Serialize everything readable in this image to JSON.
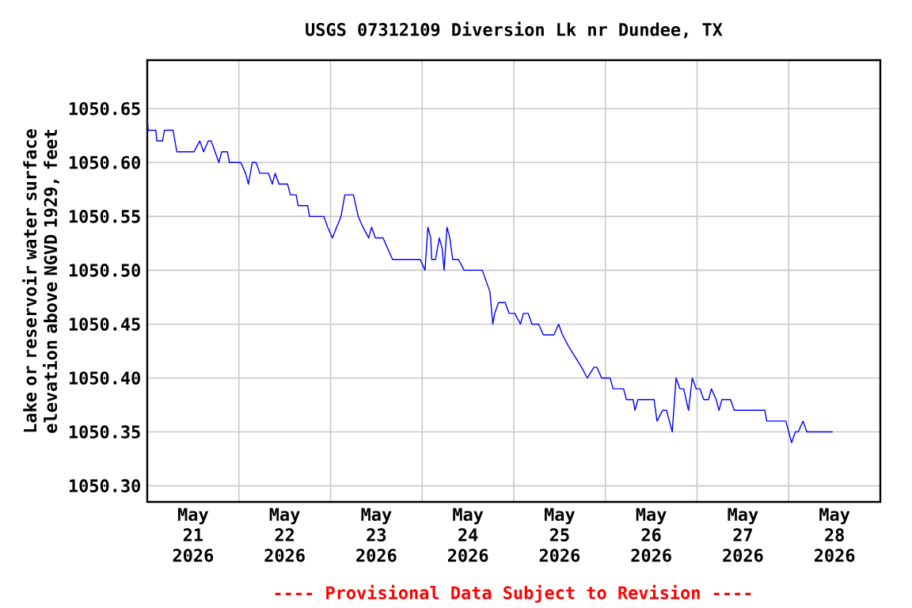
{
  "chart_data": {
    "type": "line",
    "title": "USGS 07312109 Diversion Lk nr Dundee, TX",
    "ylabel": "Lake or reservoir water surface elevation above NGVD 1929, feet",
    "x": [
      "2026-05-21T00:00",
      "2026-05-21T00:15",
      "2026-05-21T02:15",
      "2026-05-21T02:30",
      "2026-05-21T04:00",
      "2026-05-21T04:30",
      "2026-05-21T06:45",
      "2026-05-21T07:45",
      "2026-05-21T12:15",
      "2026-05-21T13:45",
      "2026-05-21T14:45",
      "2026-05-21T16:00",
      "2026-05-21T16:45",
      "2026-05-21T18:45",
      "2026-05-21T19:30",
      "2026-05-21T21:00",
      "2026-05-21T21:30",
      "2026-05-22T00:30",
      "2026-05-22T01:45",
      "2026-05-22T02:30",
      "2026-05-22T03:30",
      "2026-05-22T04:30",
      "2026-05-22T05:30",
      "2026-05-22T07:45",
      "2026-05-22T08:45",
      "2026-05-22T09:30",
      "2026-05-22T10:30",
      "2026-05-22T12:45",
      "2026-05-22T13:30",
      "2026-05-22T15:00",
      "2026-05-22T15:30",
      "2026-05-22T18:00",
      "2026-05-22T18:30",
      "2026-05-22T22:15",
      "2026-05-22T23:15",
      "2026-05-23T00:30",
      "2026-05-23T02:45",
      "2026-05-23T03:45",
      "2026-05-23T06:00",
      "2026-05-23T07:15",
      "2026-05-23T08:30",
      "2026-05-23T10:00",
      "2026-05-23T10:45",
      "2026-05-23T11:45",
      "2026-05-23T13:45",
      "2026-05-23T15:00",
      "2026-05-23T16:15",
      "2026-05-23T23:30",
      "2026-05-24T00:45",
      "2026-05-24T01:30",
      "2026-05-24T02:15",
      "2026-05-24T02:30",
      "2026-05-24T03:30",
      "2026-05-24T04:30",
      "2026-05-24T05:15",
      "2026-05-24T05:45",
      "2026-05-24T06:30",
      "2026-05-24T07:15",
      "2026-05-24T08:00",
      "2026-05-24T09:30",
      "2026-05-24T11:00",
      "2026-05-24T15:45",
      "2026-05-24T16:45",
      "2026-05-24T17:45",
      "2026-05-24T18:30",
      "2026-05-24T19:00",
      "2026-05-24T20:00",
      "2026-05-24T21:00",
      "2026-05-24T21:45",
      "2026-05-24T22:45",
      "2026-05-25T00:15",
      "2026-05-25T01:45",
      "2026-05-25T02:30",
      "2026-05-25T03:45",
      "2026-05-25T04:45",
      "2026-05-25T06:30",
      "2026-05-25T07:45",
      "2026-05-25T10:30",
      "2026-05-25T11:45",
      "2026-05-25T12:45",
      "2026-05-25T14:15",
      "2026-05-25T16:00",
      "2026-05-25T17:45",
      "2026-05-25T19:15",
      "2026-05-25T21:00",
      "2026-05-25T21:45",
      "2026-05-25T23:00",
      "2026-05-26T01:15",
      "2026-05-26T02:00",
      "2026-05-26T04:45",
      "2026-05-26T05:30",
      "2026-05-26T07:15",
      "2026-05-26T07:45",
      "2026-05-26T08:30",
      "2026-05-26T12:45",
      "2026-05-26T13:30",
      "2026-05-26T15:00",
      "2026-05-26T16:00",
      "2026-05-26T17:30",
      "2026-05-26T18:30",
      "2026-05-26T19:30",
      "2026-05-26T20:30",
      "2026-05-26T21:45",
      "2026-05-26T22:45",
      "2026-05-26T23:45",
      "2026-05-27T00:45",
      "2026-05-27T01:45",
      "2026-05-27T03:00",
      "2026-05-27T03:45",
      "2026-05-27T05:00",
      "2026-05-27T05:45",
      "2026-05-27T06:30",
      "2026-05-27T08:45",
      "2026-05-27T09:45",
      "2026-05-27T17:45",
      "2026-05-27T18:15",
      "2026-05-27T23:15",
      "2026-05-28T00:45",
      "2026-05-28T01:45",
      "2026-05-28T02:30",
      "2026-05-28T03:45",
      "2026-05-28T04:45",
      "2026-05-28T11:30"
    ],
    "values": [
      1050.64,
      1050.63,
      1050.63,
      1050.62,
      1050.62,
      1050.63,
      1050.63,
      1050.61,
      1050.61,
      1050.62,
      1050.61,
      1050.62,
      1050.62,
      1050.6,
      1050.61,
      1050.61,
      1050.6,
      1050.6,
      1050.59,
      1050.58,
      1050.6,
      1050.6,
      1050.59,
      1050.59,
      1050.58,
      1050.59,
      1050.58,
      1050.58,
      1050.57,
      1050.57,
      1050.56,
      1050.56,
      1050.55,
      1050.55,
      1050.54,
      1050.53,
      1050.55,
      1050.57,
      1050.57,
      1050.55,
      1050.54,
      1050.53,
      1050.54,
      1050.53,
      1050.53,
      1050.52,
      1050.51,
      1050.51,
      1050.5,
      1050.54,
      1050.53,
      1050.51,
      1050.51,
      1050.53,
      1050.52,
      1050.5,
      1050.54,
      1050.53,
      1050.51,
      1050.51,
      1050.5,
      1050.5,
      1050.49,
      1050.48,
      1050.45,
      1050.46,
      1050.47,
      1050.47,
      1050.47,
      1050.46,
      1050.46,
      1050.45,
      1050.46,
      1050.46,
      1050.45,
      1050.45,
      1050.44,
      1050.44,
      1050.45,
      1050.44,
      1050.43,
      1050.42,
      1050.41,
      1050.4,
      1050.41,
      1050.41,
      1050.4,
      1050.4,
      1050.39,
      1050.39,
      1050.38,
      1050.38,
      1050.37,
      1050.38,
      1050.38,
      1050.36,
      1050.37,
      1050.37,
      1050.35,
      1050.4,
      1050.39,
      1050.39,
      1050.37,
      1050.4,
      1050.39,
      1050.39,
      1050.38,
      1050.38,
      1050.39,
      1050.38,
      1050.37,
      1050.38,
      1050.38,
      1050.37,
      1050.37,
      1050.36,
      1050.36,
      1050.34,
      1050.35,
      1050.35,
      1050.36,
      1050.35,
      1050.35
    ],
    "color": "#0000ff",
    "xlim": [
      "2026-05-21T00:00",
      "2026-05-29T00:00"
    ],
    "xticks": [
      {
        "value": "2026-05-21T12:00",
        "label": "May 21 2026"
      },
      {
        "value": "2026-05-22T12:00",
        "label": "May 22 2026"
      },
      {
        "value": "2026-05-23T12:00",
        "label": "May 23 2026"
      },
      {
        "value": "2026-05-24T12:00",
        "label": "May 24 2026"
      },
      {
        "value": "2026-05-25T12:00",
        "label": "May 25 2026"
      },
      {
        "value": "2026-05-26T12:00",
        "label": "May 26 2026"
      },
      {
        "value": "2026-05-27T12:00",
        "label": "May 27 2026"
      },
      {
        "value": "2026-05-28T12:00",
        "label": "May 28 2026"
      },
      {
        "value": "2026-05-22T00:00",
        "label": null
      },
      {
        "value": "2026-05-23T00:00",
        "label": null
      },
      {
        "value": "2026-05-24T00:00",
        "label": null
      },
      {
        "value": "2026-05-25T00:00",
        "label": null
      },
      {
        "value": "2026-05-26T00:00",
        "label": null
      },
      {
        "value": "2026-05-27T00:00",
        "label": null
      },
      {
        "value": "2026-05-28T00:00",
        "label": null
      }
    ],
    "ylim": [
      1050.285,
      1050.695
    ],
    "yticks": [
      {
        "value": 1050.3,
        "label": "1050.30"
      },
      {
        "value": 1050.35,
        "label": "1050.35"
      },
      {
        "value": 1050.4,
        "label": "1050.40"
      },
      {
        "value": 1050.45,
        "label": "1050.45"
      },
      {
        "value": 1050.5,
        "label": "1050.50"
      },
      {
        "value": 1050.55,
        "label": "1050.55"
      },
      {
        "value": 1050.6,
        "label": "1050.60"
      },
      {
        "value": 1050.65,
        "label": "1050.65"
      }
    ],
    "grid": true,
    "annotations": [
      "---- Provisional Data Subject to Revision ----"
    ]
  }
}
